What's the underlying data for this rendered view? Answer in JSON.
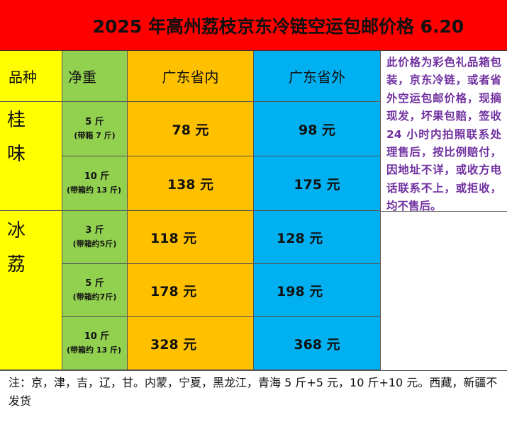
{
  "title": "2025 年高州荔枝京东冷链空运包邮价格 6.20",
  "headers": {
    "variety": "品种",
    "weight": "净重",
    "province_in": "广东省内",
    "province_out": "广东省外"
  },
  "varieties": {
    "guiwei": "桂\n味",
    "bingli": "冰\n荔"
  },
  "rows": [
    {
      "weight": "5 斤",
      "box": "(带箱 7 斤)",
      "price_in": "78 元",
      "price_out": "98 元"
    },
    {
      "weight": "10 斤",
      "box": "(带箱约 13 斤)",
      "price_in": "138 元",
      "price_out": "175 元"
    },
    {
      "weight": "3 斤",
      "box": "(带箱约5斤)",
      "price_in": "118 元",
      "price_out": "128 元"
    },
    {
      "weight": "5 斤",
      "box": "(带箱约7斤)",
      "price_in": "178 元",
      "price_out": "198 元"
    },
    {
      "weight": "10 斤",
      "box": "(带箱约 13 斤)",
      "price_in": "328 元",
      "price_out": "368 元"
    }
  ],
  "side_note": "此价格为彩色礼品箱包装，京东冷链，或者省外空运包邮价格，现摘现发，坏果包赔，签收 24 小时内拍照联系处理售后，按比例赔付，因地址不详，或收方电话联系不上，或拒收，均不售后。",
  "footer_note": "注：京，津，吉，辽，甘。内蒙，宁夏，黑龙江，青海 5 斤+5 元，10 斤+10 元。西藏，新疆不发货",
  "colors": {
    "title_bg": "#ff0000",
    "variety_bg": "#ffff00",
    "weight_bg": "#92d050",
    "inside_bg": "#ffc000",
    "outside_bg": "#00b0f0",
    "note_text": "#7030a0"
  }
}
